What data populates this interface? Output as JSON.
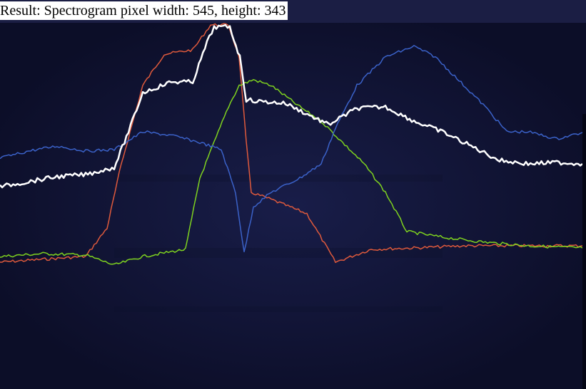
{
  "header": {
    "result_text": "Result: Spectrogram pixel width: 545, height: 343"
  },
  "colors": {
    "background": "#151a44",
    "red_curve": "#e05a3c",
    "green_curve": "#7fd31f",
    "blue_curve": "#3b62c9",
    "white_curve": "#ffffff"
  },
  "chart_data": {
    "type": "line",
    "title": "",
    "xlabel": "",
    "ylabel": "",
    "series": [
      {
        "color": "#e05a3c",
        "points": [
          [
            0,
            368
          ],
          [
            60,
            364
          ],
          [
            120,
            360
          ],
          [
            150,
            320
          ],
          [
            170,
            230
          ],
          [
            200,
            120
          ],
          [
            230,
            76
          ],
          [
            270,
            70
          ],
          [
            295,
            35
          ],
          [
            320,
            35
          ],
          [
            335,
            80
          ],
          [
            345,
            200
          ],
          [
            352,
            270
          ],
          [
            380,
            280
          ],
          [
            430,
            300
          ],
          [
            470,
            368
          ],
          [
            520,
            350
          ],
          [
            580,
            348
          ],
          [
            650,
            345
          ],
          [
            710,
            345
          ],
          [
            816,
            345
          ]
        ]
      },
      {
        "color": "#7fd31f",
        "points": [
          [
            0,
            360
          ],
          [
            60,
            356
          ],
          [
            120,
            358
          ],
          [
            160,
            372
          ],
          [
            200,
            360
          ],
          [
            260,
            350
          ],
          [
            280,
            250
          ],
          [
            300,
            200
          ],
          [
            320,
            150
          ],
          [
            335,
            120
          ],
          [
            355,
            112
          ],
          [
            380,
            120
          ],
          [
            420,
            150
          ],
          [
            450,
            170
          ],
          [
            480,
            200
          ],
          [
            510,
            230
          ],
          [
            540,
            270
          ],
          [
            570,
            325
          ],
          [
            620,
            333
          ],
          [
            680,
            340
          ],
          [
            740,
            345
          ],
          [
            816,
            348
          ]
        ]
      },
      {
        "color": "#3b62c9",
        "points": [
          [
            0,
            222
          ],
          [
            40,
            212
          ],
          [
            80,
            205
          ],
          [
            120,
            212
          ],
          [
            160,
            210
          ],
          [
            200,
            185
          ],
          [
            240,
            190
          ],
          [
            280,
            200
          ],
          [
            310,
            210
          ],
          [
            330,
            270
          ],
          [
            342,
            355
          ],
          [
            355,
            290
          ],
          [
            380,
            270
          ],
          [
            420,
            250
          ],
          [
            450,
            230
          ],
          [
            470,
            180
          ],
          [
            500,
            120
          ],
          [
            540,
            80
          ],
          [
            580,
            65
          ],
          [
            610,
            80
          ],
          [
            640,
            110
          ],
          [
            680,
            150
          ],
          [
            710,
            185
          ],
          [
            740,
            185
          ],
          [
            780,
            195
          ],
          [
            816,
            186
          ]
        ]
      },
      {
        "color": "#ffffff",
        "points": [
          [
            0,
            262
          ],
          [
            40,
            255
          ],
          [
            80,
            248
          ],
          [
            120,
            245
          ],
          [
            160,
            235
          ],
          [
            180,
            185
          ],
          [
            200,
            130
          ],
          [
            240,
            115
          ],
          [
            270,
            115
          ],
          [
            290,
            60
          ],
          [
            300,
            38
          ],
          [
            322,
            38
          ],
          [
            336,
            80
          ],
          [
            345,
            140
          ],
          [
            360,
            142
          ],
          [
            400,
            145
          ],
          [
            440,
            165
          ],
          [
            460,
            175
          ],
          [
            500,
            152
          ],
          [
            540,
            150
          ],
          [
            580,
            170
          ],
          [
            620,
            185
          ],
          [
            660,
            205
          ],
          [
            700,
            225
          ],
          [
            740,
            230
          ],
          [
            780,
            228
          ],
          [
            816,
            230
          ]
        ]
      }
    ]
  }
}
